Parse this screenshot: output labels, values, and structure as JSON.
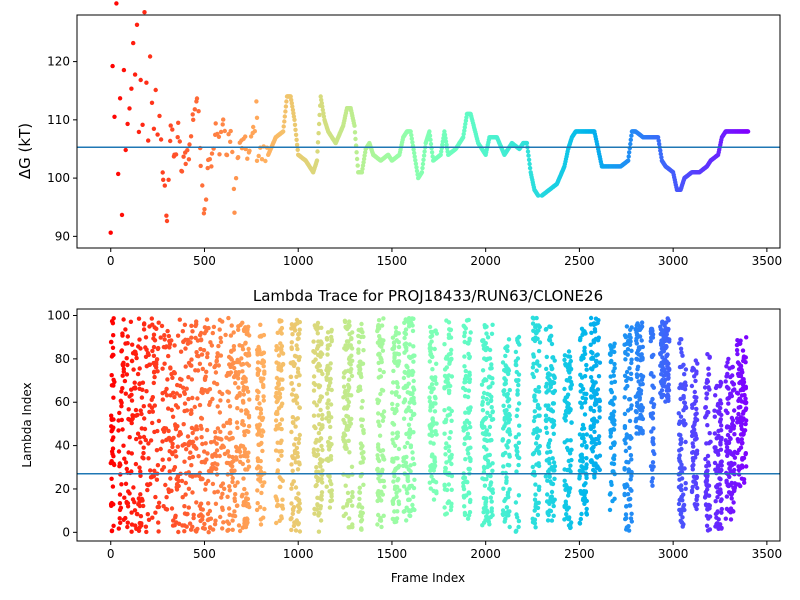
{
  "chart_data": [
    {
      "type": "scatter",
      "title": "",
      "xlabel": "",
      "ylabel": "ΔG (kT)",
      "xlim": [
        -180,
        3570
      ],
      "ylim": [
        88,
        128
      ],
      "xticks": [
        0,
        500,
        1000,
        1500,
        2000,
        2500,
        3000,
        3500
      ],
      "yticks": [
        90,
        100,
        110,
        120
      ],
      "colormap": "rainbow (red at frame 0 → violet at final frame)",
      "hline": {
        "y": 105.3,
        "color": "#1f77b4"
      },
      "frames": 3400,
      "series": [
        {
          "x": [
            0,
            10,
            20,
            30,
            40,
            50,
            60,
            70,
            80,
            90,
            100,
            110,
            120,
            130,
            140,
            150,
            160,
            170,
            180,
            190,
            200,
            210,
            220,
            230,
            240,
            250
          ],
          "y": [
            90,
            120,
            110,
            128,
            100,
            113,
            95,
            117,
            104,
            108,
            111,
            116,
            122,
            119,
            126,
            109,
            118,
            108,
            127,
            115,
            108,
            121,
            112,
            109,
            116,
            108
          ]
        },
        {
          "x": [
            260,
            280,
            300,
            320,
            340,
            360,
            380,
            400,
            420,
            440,
            460,
            480,
            500,
            520,
            540,
            560,
            580,
            600,
            620,
            640,
            660,
            680,
            700,
            720,
            740,
            760,
            780
          ],
          "y": [
            109,
            100,
            94,
            109,
            103,
            108,
            101,
            104,
            105,
            111,
            114,
            104,
            94,
            104,
            103,
            108,
            106,
            110,
            104,
            108,
            96,
            104,
            106,
            105,
            104,
            108,
            112
          ]
        },
        {
          "x": [
            780,
            840,
            880,
            920,
            940,
            960,
            980,
            1000,
            1040,
            1080,
            1100,
            1120,
            1140,
            1160,
            1200,
            1240,
            1260,
            1280,
            1300,
            1320,
            1340,
            1360,
            1380,
            1400,
            1440,
            1480,
            1500,
            1540,
            1560,
            1580,
            1600,
            1640,
            1660,
            1680,
            1700,
            1720,
            1760,
            1780,
            1800,
            1840,
            1880,
            1900,
            1920,
            1960,
            2000,
            2020,
            2060,
            2100,
            2140,
            2180,
            2200,
            2220,
            2240,
            2260,
            2280
          ],
          "y": [
            104,
            104,
            107,
            108,
            114,
            114,
            110,
            104,
            103,
            101,
            103,
            114,
            110,
            108,
            106,
            109,
            112,
            112,
            109,
            101,
            101,
            105,
            106,
            104,
            103,
            104,
            103,
            104,
            107,
            108,
            108,
            100,
            101,
            106,
            108,
            103,
            104,
            108,
            104,
            105,
            107,
            111,
            111,
            106,
            104,
            107,
            107,
            104,
            106,
            105,
            106,
            106,
            101,
            98,
            97
          ]
        },
        {
          "x": [
            2300,
            2340,
            2380,
            2420,
            2440,
            2460,
            2480,
            2520,
            2560,
            2580,
            2600,
            2620,
            2640,
            2680,
            2720,
            2760,
            2780,
            2800,
            2840,
            2880,
            2920,
            2940,
            2960,
            3000,
            3020,
            3040,
            3060,
            3100,
            3140,
            3180,
            3200,
            3240,
            3260,
            3280,
            3300,
            3340,
            3380,
            3400
          ],
          "y": [
            97,
            98,
            99,
            102,
            105,
            107,
            108,
            108,
            108,
            108,
            105,
            102,
            102,
            102,
            102,
            103,
            108,
            108,
            107,
            107,
            107,
            103,
            102,
            101,
            98,
            98,
            100,
            101,
            101,
            102,
            103,
            104,
            107,
            108,
            108,
            108,
            108,
            108
          ]
        }
      ]
    },
    {
      "type": "scatter",
      "title": "Lambda Trace for PROJ18433/RUN63/CLONE26",
      "xlabel": "Frame Index",
      "ylabel": "Lambda Index",
      "xlim": [
        -180,
        3570
      ],
      "ylim": [
        -4,
        103
      ],
      "xticks": [
        0,
        500,
        1000,
        1500,
        2000,
        2500,
        3000,
        3500
      ],
      "yticks": [
        0,
        20,
        40,
        60,
        80,
        100
      ],
      "colormap": "rainbow (red at frame 0 → violet at final frame)",
      "hline": {
        "y": 27,
        "color": "#1f77b4"
      },
      "frames": 3400,
      "trace_style": "dense random walk over lambda index 0–100; scattered in the first 700 frames, forming vertical sweeps afterwards",
      "sweep_bands": [
        {
          "x": [
            0,
            20
          ],
          "y": [
            0,
            99
          ]
        },
        {
          "x": [
            40,
            700
          ],
          "y": [
            0,
            99
          ]
        },
        {
          "x": [
            700,
            740
          ],
          "y": [
            2,
            98
          ]
        },
        {
          "x": [
            780,
            820
          ],
          "y": [
            2,
            96
          ]
        },
        {
          "x": [
            880,
            920
          ],
          "y": [
            4,
            98
          ]
        },
        {
          "x": [
            960,
            1010
          ],
          "y": [
            0,
            98
          ]
        },
        {
          "x": [
            1080,
            1130
          ],
          "y": [
            0,
            97
          ]
        },
        {
          "x": [
            1150,
            1180
          ],
          "y": [
            10,
            96
          ]
        },
        {
          "x": [
            1240,
            1290
          ],
          "y": [
            2,
            98
          ]
        },
        {
          "x": [
            1320,
            1350
          ],
          "y": [
            0,
            99
          ]
        },
        {
          "x": [
            1420,
            1460
          ],
          "y": [
            2,
            99
          ]
        },
        {
          "x": [
            1500,
            1540
          ],
          "y": [
            2,
            95
          ]
        },
        {
          "x": [
            1560,
            1620
          ],
          "y": [
            5,
            99
          ]
        },
        {
          "x": [
            1700,
            1740
          ],
          "y": [
            15,
            97
          ]
        },
        {
          "x": [
            1780,
            1820
          ],
          "y": [
            8,
            98
          ]
        },
        {
          "x": [
            1880,
            1920
          ],
          "y": [
            5,
            98
          ]
        },
        {
          "x": [
            1980,
            2040
          ],
          "y": [
            3,
            97
          ]
        },
        {
          "x": [
            2090,
            2130
          ],
          "y": [
            2,
            90
          ]
        },
        {
          "x": [
            2160,
            2180
          ],
          "y": [
            0,
            96
          ]
        },
        {
          "x": [
            2250,
            2290
          ],
          "y": [
            2,
            99
          ]
        },
        {
          "x": [
            2320,
            2370
          ],
          "y": [
            5,
            95
          ]
        },
        {
          "x": [
            2420,
            2460
          ],
          "y": [
            0,
            84
          ]
        },
        {
          "x": [
            2500,
            2540
          ],
          "y": [
            4,
            94
          ]
        },
        {
          "x": [
            2560,
            2610
          ],
          "y": [
            25,
            99
          ]
        },
        {
          "x": [
            2660,
            2690
          ],
          "y": [
            10,
            88
          ]
        },
        {
          "x": [
            2740,
            2780
          ],
          "y": [
            0,
            96
          ]
        },
        {
          "x": [
            2800,
            2840
          ],
          "y": [
            45,
            97
          ]
        },
        {
          "x": [
            2880,
            2900
          ],
          "y": [
            20,
            95
          ]
        },
        {
          "x": [
            2930,
            2980
          ],
          "y": [
            60,
            99
          ]
        },
        {
          "x": [
            3030,
            3070
          ],
          "y": [
            2,
            90
          ]
        },
        {
          "x": [
            3100,
            3130
          ],
          "y": [
            10,
            80
          ]
        },
        {
          "x": [
            3170,
            3200
          ],
          "y": [
            0,
            84
          ]
        },
        {
          "x": [
            3220,
            3260
          ],
          "y": [
            0,
            70
          ]
        },
        {
          "x": [
            3280,
            3330
          ],
          "y": [
            5,
            80
          ]
        },
        {
          "x": [
            3340,
            3390
          ],
          "y": [
            20,
            91
          ]
        }
      ]
    }
  ]
}
